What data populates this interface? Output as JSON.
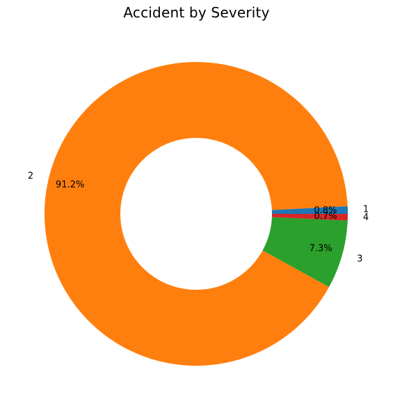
{
  "chart_data": {
    "type": "pie",
    "title": "Accident by Severity",
    "donut": true,
    "start_angle_deg": 0,
    "direction": "counterclockwise",
    "slices": [
      {
        "label": "1",
        "value": 0.8,
        "pct_label": "0.8%",
        "color": "#1f77b4"
      },
      {
        "label": "2",
        "value": 91.2,
        "pct_label": "91.2%",
        "color": "#ff7f0e"
      },
      {
        "label": "3",
        "value": 7.3,
        "pct_label": "7.3%",
        "color": "#2ca02c"
      },
      {
        "label": "4",
        "value": 0.7,
        "pct_label": "0.7%",
        "color": "#d62728"
      }
    ]
  }
}
